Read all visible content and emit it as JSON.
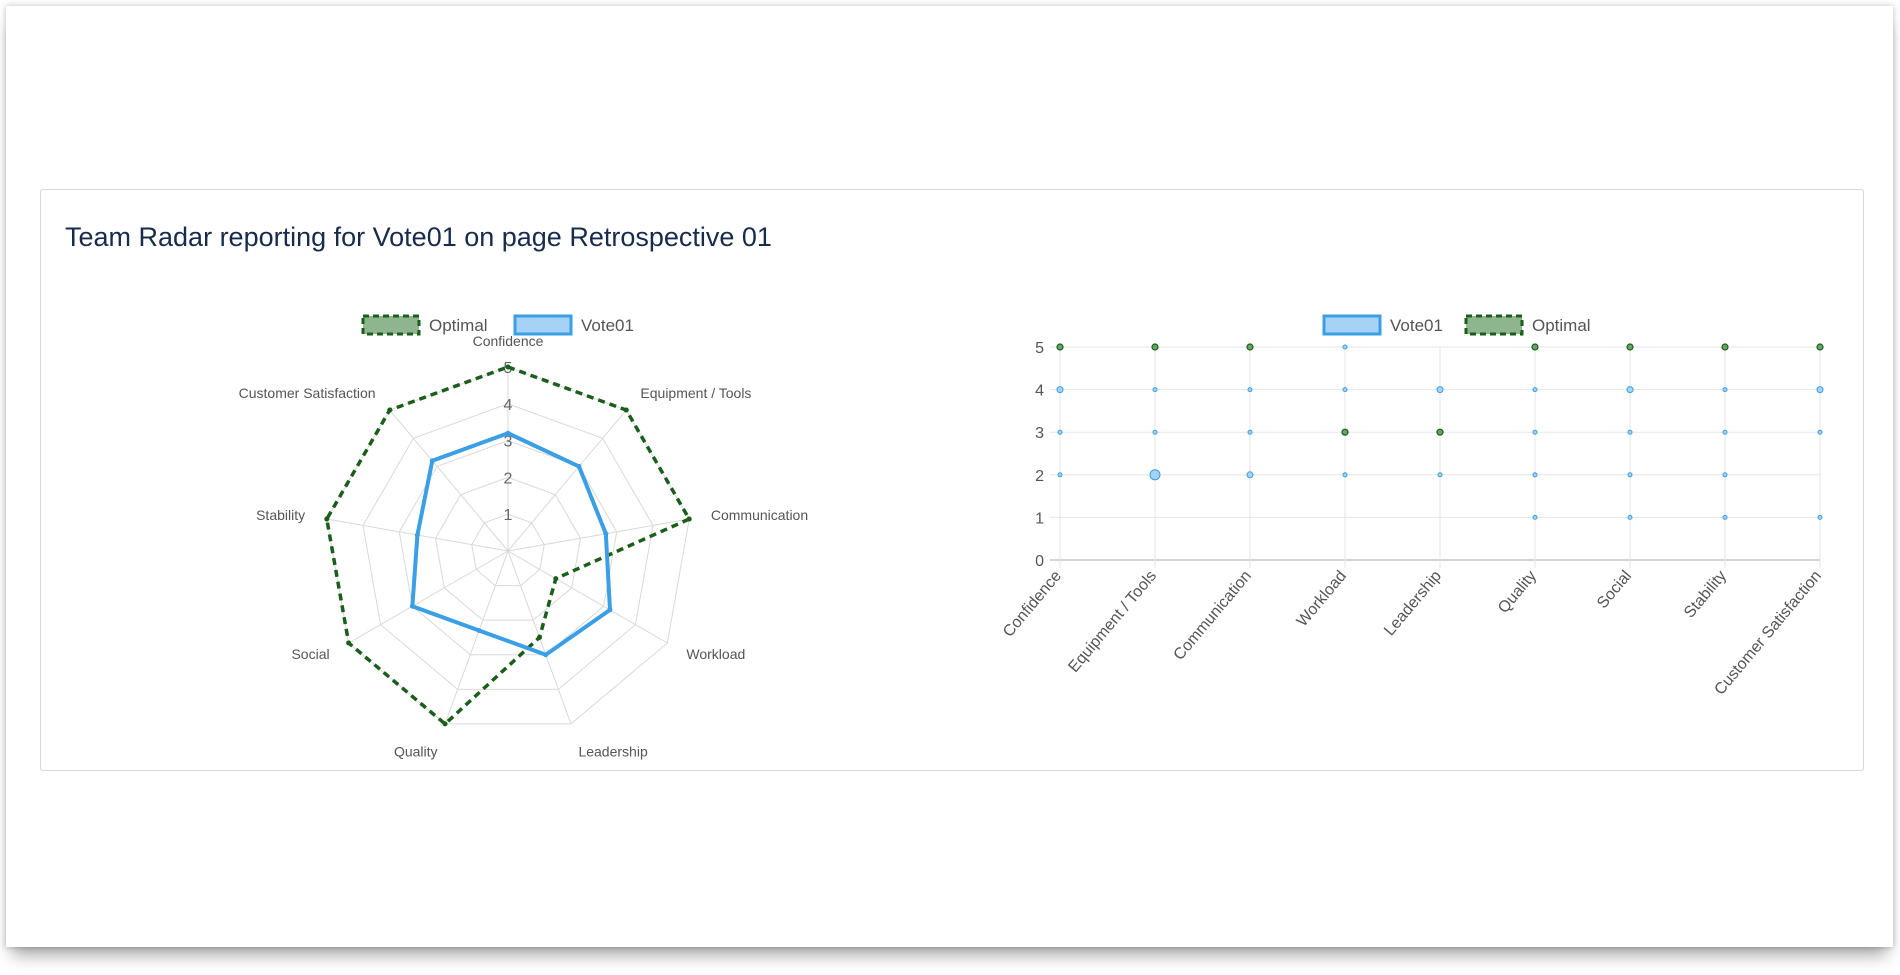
{
  "page": {
    "title": "Team Radar reporting for Vote01 on page Retrospective 01"
  },
  "colors": {
    "vote_line": "#3a9fe5",
    "vote_fill": "#a6d2f5",
    "optimal_line": "#1b5e1b",
    "optimal_fill": "#8fb58f",
    "grid": "#d9d9d9",
    "text": "#555555"
  },
  "chart_data": [
    {
      "type": "radar",
      "categories": [
        "Confidence",
        "Equipment / Tools",
        "Communication",
        "Workload",
        "Leadership",
        "Quality",
        "Social",
        "Stability",
        "Customer Satisfaction"
      ],
      "tick_labels": [
        "1",
        "2",
        "3",
        "4",
        "5"
      ],
      "range": [
        0,
        5
      ],
      "legend": "top-center",
      "series": [
        {
          "name": "Optimal",
          "values": [
            5,
            5,
            5,
            1.5,
            2.5,
            5,
            5,
            5,
            5
          ],
          "style": "dashed"
        },
        {
          "name": "Vote01",
          "values": [
            3.2,
            3,
            2.7,
            3.2,
            3,
            2.3,
            3,
            2.5,
            3.2
          ],
          "style": "solid"
        }
      ]
    },
    {
      "type": "scatter",
      "categories": [
        "Confidence",
        "Equipment / Tools",
        "Communication",
        "Workload",
        "Leadership",
        "Quality",
        "Social",
        "Stability",
        "Customer Satisfaction"
      ],
      "y_tick_labels": [
        "0",
        "1",
        "2",
        "3",
        "4",
        "5"
      ],
      "ylim": [
        0,
        5
      ],
      "grid": true,
      "legend": "top-center",
      "series": [
        {
          "name": "Vote01",
          "points": [
            [
              0,
              4,
              3
            ],
            [
              0,
              3,
              2
            ],
            [
              0,
              2,
              2
            ],
            [
              1,
              4,
              2
            ],
            [
              1,
              3,
              2
            ],
            [
              1,
              2,
              5
            ],
            [
              2,
              4,
              2
            ],
            [
              2,
              3,
              2
            ],
            [
              2,
              2,
              3
            ],
            [
              3,
              5,
              2
            ],
            [
              3,
              4,
              2
            ],
            [
              3,
              3,
              3
            ],
            [
              3,
              2,
              2
            ],
            [
              4,
              4,
              3
            ],
            [
              4,
              3,
              2
            ],
            [
              4,
              2,
              2
            ],
            [
              5,
              4,
              2
            ],
            [
              5,
              3,
              2
            ],
            [
              5,
              2,
              2
            ],
            [
              5,
              1,
              2
            ],
            [
              6,
              4,
              3
            ],
            [
              6,
              3,
              2
            ],
            [
              6,
              2,
              2
            ],
            [
              6,
              1,
              2
            ],
            [
              7,
              4,
              2
            ],
            [
              7,
              3,
              2
            ],
            [
              7,
              2,
              2
            ],
            [
              7,
              1,
              2
            ],
            [
              8,
              4,
              3
            ],
            [
              8,
              3,
              2
            ],
            [
              8,
              1,
              2
            ]
          ]
        },
        {
          "name": "Optimal",
          "points": [
            [
              0,
              5,
              3
            ],
            [
              1,
              5,
              3
            ],
            [
              2,
              5,
              3
            ],
            [
              3,
              3,
              3
            ],
            [
              4,
              3,
              3
            ],
            [
              5,
              5,
              3
            ],
            [
              6,
              5,
              3
            ],
            [
              7,
              5,
              3
            ],
            [
              8,
              5,
              3
            ]
          ]
        }
      ]
    }
  ]
}
